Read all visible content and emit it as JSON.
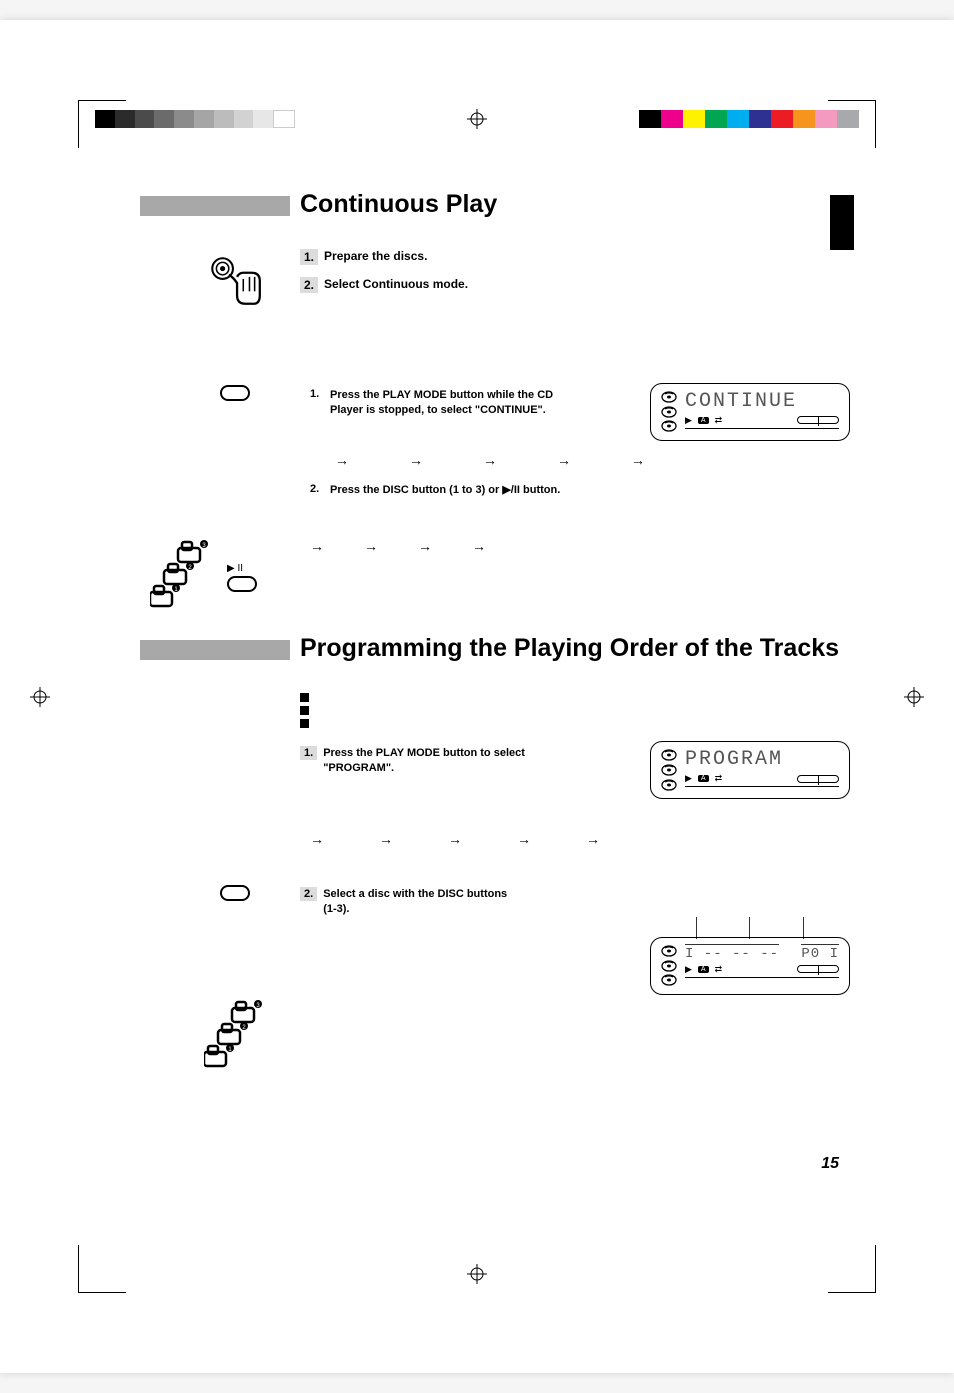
{
  "registration_colors_gray": [
    "#000000",
    "#2b2b2b",
    "#4b4b4b",
    "#6b6b6b",
    "#8b8b8b",
    "#a5a5a5",
    "#bcbcbc",
    "#d2d2d2",
    "#e7e7e7",
    "#ffffff"
  ],
  "registration_colors_cmyk": [
    "#000000",
    "#ec008c",
    "#fff200",
    "#00a651",
    "#00aeef",
    "#2e3192",
    "#ed1c24",
    "#f7941d",
    "#f49ac1",
    "#a7a9ac"
  ],
  "section1": {
    "title": "Continuous Play",
    "step1_num": "1.",
    "step1_text": "Prepare the discs.",
    "step2_num": "2.",
    "step2_text": "Select Continuous mode.",
    "instr1_num": "1.",
    "instr1_text": "Press the PLAY MODE button while the CD Player is stopped, to select \"CONTINUE\".",
    "lcd1_text": "CONTINUE",
    "instr2_num": "2.",
    "instr2_text": "Press the DISC button (1 to 3) or ▶/II button."
  },
  "section2": {
    "title": "Programming the Playing Order of the Tracks",
    "instr1_num": "1.",
    "instr1_text": "Press the PLAY MODE button to select \"PROGRAM\".",
    "lcd1_text": "PROGRAM",
    "instr2_num": "2.",
    "instr2_text": "Select a disc with the DISC buttons  (1-3).",
    "lcd2_left": "I -- -- --",
    "lcd2_right": "P0 I"
  },
  "lcd_badge": "A",
  "page_number": "15"
}
